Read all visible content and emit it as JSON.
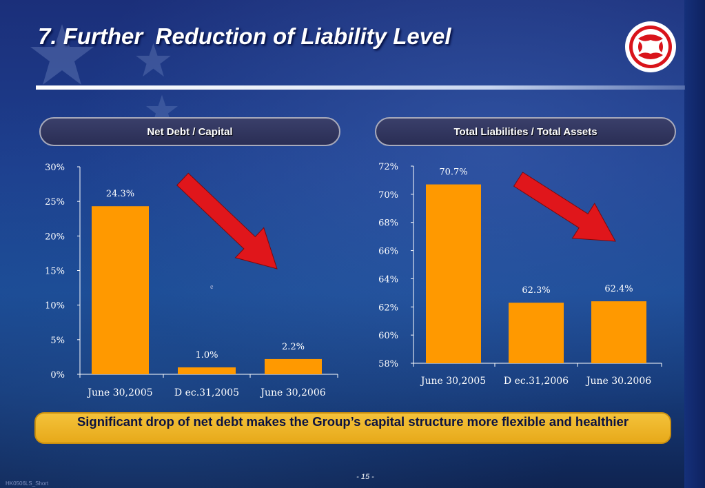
{
  "slide": {
    "title": "7. Further  Reduction of Liability Level",
    "conclusion": "Significant drop of net debt makes the Group’s capital structure more flexible and healthier",
    "page_number": "- 15 -",
    "footer_code": "HK0506LS_Short",
    "stray_mark": "e"
  },
  "colors": {
    "bar": "#ff9900",
    "arrow": "#e0161b",
    "axis": "#ffffff",
    "conclusion_box": "#f0b429",
    "logo_red": "#d9141b"
  },
  "icons": {
    "logo": "dongfeng-logo",
    "arrow": "down-right-arrow"
  },
  "chart_data": [
    {
      "type": "bar",
      "title": "Net Debt / Capital",
      "categories": [
        "June 30,2005",
        "D ec.31,2005",
        "June 30,2006"
      ],
      "values": [
        24.3,
        1.0,
        2.2
      ],
      "value_labels": [
        "24.3%",
        "1.0%",
        "2.2%"
      ],
      "yticks": [
        "0%",
        "5%",
        "10%",
        "15%",
        "20%",
        "25%",
        "30%"
      ],
      "ylim": [
        0,
        30
      ],
      "grid": false,
      "legend": "none"
    },
    {
      "type": "bar",
      "title": "Total Liabilities / Total Assets",
      "categories": [
        "June 30,2005",
        "D ec.31,2006",
        "June  30.2006"
      ],
      "values": [
        70.7,
        62.3,
        62.4
      ],
      "value_labels": [
        "70.7%",
        "62.3%",
        "62.4%"
      ],
      "yticks": [
        "58%",
        "60%",
        "62%",
        "64%",
        "66%",
        "68%",
        "70%",
        "72%"
      ],
      "ylim": [
        58,
        72
      ],
      "grid": false,
      "legend": "none"
    }
  ]
}
